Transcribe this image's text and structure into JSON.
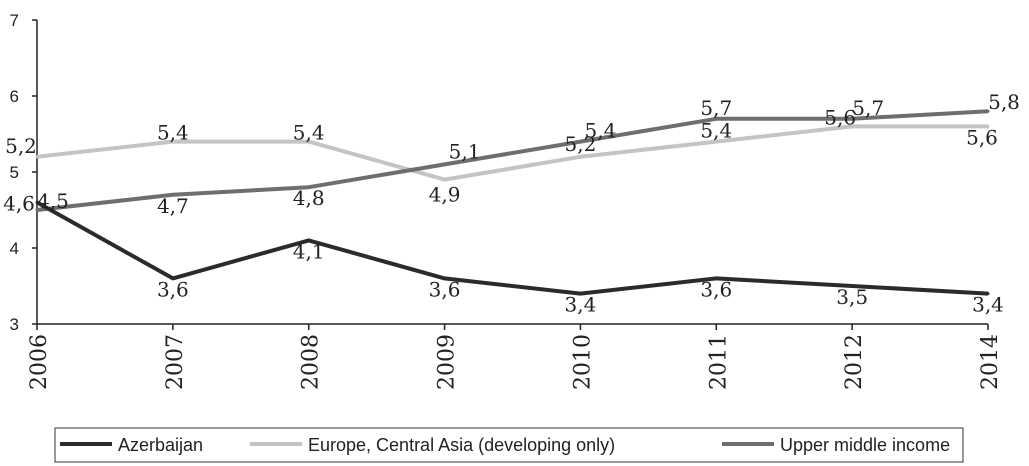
{
  "chart_data": {
    "type": "line",
    "categories": [
      "2006",
      "2007",
      "2008",
      "2009",
      "2010",
      "2011",
      "2012",
      "2014"
    ],
    "yticks": [
      "3",
      "4",
      "5",
      "6",
      "7"
    ],
    "ylim": [
      3,
      7
    ],
    "grid": false,
    "legend_position": "bottom",
    "series": [
      {
        "name": "Azerbaijan",
        "color": "#2b2b2b",
        "values": [
          4.6,
          3.6,
          4.1,
          3.6,
          3.4,
          3.6,
          3.5,
          3.4
        ],
        "labels": [
          "4,6",
          "3,6",
          "4,1",
          "3,6",
          "3,4",
          "3,6",
          "3,5",
          "3,4"
        ]
      },
      {
        "name": "Europe, Central Asia (developing only)",
        "color": "#c4c4c4",
        "values": [
          5.2,
          5.4,
          5.4,
          4.9,
          5.2,
          5.4,
          5.6,
          5.6
        ],
        "labels": [
          "5,2",
          "5,4",
          "5,4",
          "4,9",
          "5,2",
          "5,4",
          "5,6",
          "5,6"
        ]
      },
      {
        "name": "Upper middle income",
        "color": "#6e6e6e",
        "values": [
          4.5,
          4.7,
          4.8,
          5.1,
          5.4,
          5.7,
          5.7,
          5.8
        ],
        "labels": [
          "4,5",
          "4,7",
          "4,8",
          "5,1",
          "5,4",
          "5,7",
          "5,7",
          "5,8"
        ]
      }
    ]
  }
}
